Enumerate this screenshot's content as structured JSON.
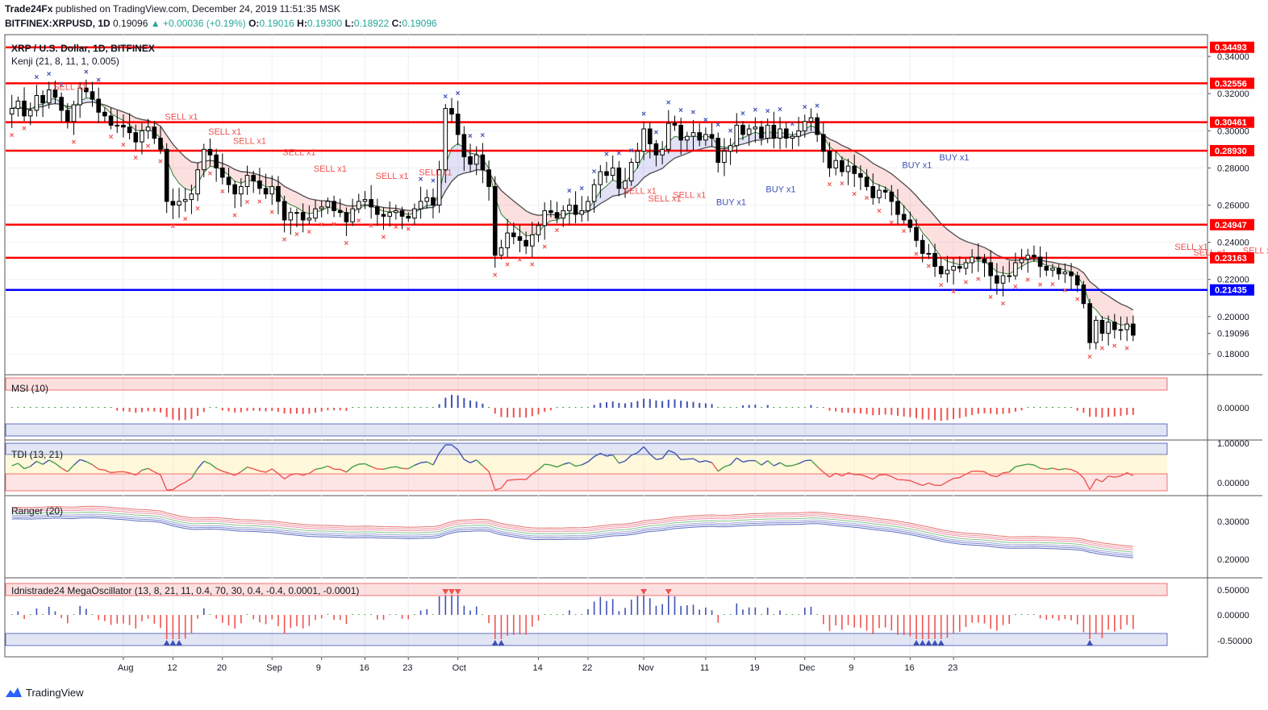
{
  "header": {
    "publisher": "Trade24Fx",
    "published_text": "published on TradingView.com, December 24, 2019 11:51:35 MSK",
    "symbol": "BITFINEX:XRPUSD, 1D",
    "last": "0.19096",
    "change": "+0.00036 (+0.19%)",
    "o_label": "O:",
    "o": "0.19016",
    "h_label": "H:",
    "h": "0.19300",
    "l_label": "L:",
    "l": "0.18922",
    "c_label": "C:",
    "c": "0.19096"
  },
  "footer": {
    "brand": "TradingView"
  },
  "colors": {
    "bull": "#ffffff",
    "bear": "#000000",
    "level": "#ff0000",
    "support": "#0000ff",
    "sell": "#ef5350",
    "buy": "#3f51b5"
  },
  "chart_data": [
    {
      "type": "candlestick",
      "title": "XRP / U.S. Dollar, 1D, BITFINEX",
      "indicator_label": "Kenji (21, 8, 11, 1, 0.005)",
      "ylim": [
        0.17,
        0.35
      ],
      "y_ticks": [
        "0.34000",
        "0.32000",
        "0.30000",
        "0.28000",
        "0.26000",
        "0.24000",
        "0.22000",
        "0.20000",
        "0.18000"
      ],
      "last_price": "0.19096",
      "x_tick_labels": [
        "Aug",
        "12",
        "20",
        "Sep",
        "9",
        "16",
        "23",
        "Oct",
        "14",
        "22",
        "Nov",
        "11",
        "19",
        "Dec",
        "9",
        "16",
        "23"
      ],
      "levels": [
        {
          "value": 0.34493,
          "label": "0.34493",
          "color": "#ff0000"
        },
        {
          "value": 0.32556,
          "label": "0.32556",
          "color": "#ff0000"
        },
        {
          "value": 0.30461,
          "label": "0.30461",
          "color": "#ff0000"
        },
        {
          "value": 0.2893,
          "label": "0.28930",
          "color": "#ff0000"
        },
        {
          "value": 0.24947,
          "label": "0.24947",
          "color": "#ff0000"
        },
        {
          "value": 0.23163,
          "label": "0.23163",
          "color": "#ff0000"
        },
        {
          "value": 0.21435,
          "label": "0.21435",
          "color": "#0000ff"
        }
      ],
      "close": [
        0.312,
        0.316,
        0.308,
        0.311,
        0.319,
        0.315,
        0.322,
        0.318,
        0.311,
        0.305,
        0.314,
        0.323,
        0.321,
        0.317,
        0.31,
        0.308,
        0.303,
        0.303,
        0.302,
        0.299,
        0.294,
        0.3,
        0.302,
        0.296,
        0.29,
        0.262,
        0.26,
        0.262,
        0.263,
        0.266,
        0.279,
        0.29,
        0.287,
        0.28,
        0.275,
        0.271,
        0.266,
        0.27,
        0.276,
        0.273,
        0.269,
        0.266,
        0.27,
        0.262,
        0.252,
        0.256,
        0.256,
        0.252,
        0.253,
        0.258,
        0.259,
        0.262,
        0.257,
        0.256,
        0.251,
        0.258,
        0.262,
        0.263,
        0.259,
        0.255,
        0.254,
        0.256,
        0.257,
        0.254,
        0.253,
        0.258,
        0.262,
        0.264,
        0.26,
        0.279,
        0.312,
        0.309,
        0.298,
        0.286,
        0.282,
        0.287,
        0.279,
        0.27,
        0.233,
        0.237,
        0.245,
        0.243,
        0.241,
        0.238,
        0.244,
        0.249,
        0.257,
        0.256,
        0.253,
        0.257,
        0.26,
        0.255,
        0.257,
        0.262,
        0.271,
        0.278,
        0.276,
        0.28,
        0.269,
        0.273,
        0.283,
        0.289,
        0.301,
        0.293,
        0.287,
        0.29,
        0.304,
        0.303,
        0.295,
        0.297,
        0.299,
        0.295,
        0.298,
        0.296,
        0.283,
        0.289,
        0.292,
        0.303,
        0.298,
        0.301,
        0.302,
        0.296,
        0.303,
        0.296,
        0.301,
        0.296,
        0.297,
        0.3,
        0.305,
        0.307,
        0.298,
        0.289,
        0.28,
        0.284,
        0.278,
        0.281,
        0.277,
        0.275,
        0.27,
        0.264,
        0.268,
        0.267,
        0.262,
        0.255,
        0.252,
        0.248,
        0.241,
        0.234,
        0.234,
        0.227,
        0.223,
        0.225,
        0.227,
        0.226,
        0.229,
        0.232,
        0.231,
        0.229,
        0.222,
        0.218,
        0.222,
        0.222,
        0.229,
        0.231,
        0.233,
        0.232,
        0.227,
        0.225,
        0.226,
        0.223,
        0.224,
        0.222,
        0.217,
        0.207,
        0.186,
        0.198,
        0.191,
        0.197,
        0.193,
        0.193,
        0.196,
        0.19
      ],
      "overlay_labels": [
        {
          "text": "SELL x1",
          "kind": "sell",
          "day": 8,
          "price": 0.322
        },
        {
          "text": "SELL x1",
          "kind": "sell",
          "day": 26,
          "price": 0.306
        },
        {
          "text": "SELL x1",
          "kind": "sell",
          "day": 33,
          "price": 0.298
        },
        {
          "text": "SELL x1",
          "kind": "sell",
          "day": 37,
          "price": 0.293
        },
        {
          "text": "SELL x1",
          "kind": "sell",
          "day": 45,
          "price": 0.287
        },
        {
          "text": "SELL x1",
          "kind": "sell",
          "day": 50,
          "price": 0.278
        },
        {
          "text": "SELL x1",
          "kind": "sell",
          "day": 60,
          "price": 0.274
        },
        {
          "text": "SELL x1",
          "kind": "sell",
          "day": 67,
          "price": 0.276
        },
        {
          "text": "SELL x1",
          "kind": "sell",
          "day": 100,
          "price": 0.266
        },
        {
          "text": "SELL x1",
          "kind": "sell",
          "day": 104,
          "price": 0.262
        },
        {
          "text": "SELL x1",
          "kind": "sell",
          "day": 108,
          "price": 0.264
        },
        {
          "text": "BUY x1",
          "kind": "buy",
          "day": 115,
          "price": 0.26
        },
        {
          "text": "BUY x1",
          "kind": "buy",
          "day": 123,
          "price": 0.267
        },
        {
          "text": "BUY x1",
          "kind": "buy",
          "day": 145,
          "price": 0.28
        },
        {
          "text": "BUY x1",
          "kind": "buy",
          "day": 151,
          "price": 0.284
        },
        {
          "text": "SELL x1",
          "kind": "sell",
          "day": 189,
          "price": 0.236
        },
        {
          "text": "SELL x1",
          "kind": "sell",
          "day": 192,
          "price": 0.233
        },
        {
          "text": "SELL x1",
          "kind": "sell",
          "day": 200,
          "price": 0.234
        },
        {
          "text": "SELL x1",
          "kind": "sell",
          "day": 222,
          "price": 0.206
        }
      ]
    },
    {
      "type": "bar",
      "title": "MSI (10)",
      "y_ticks": [
        "0.00000"
      ],
      "band_upper": 0.5,
      "band_lower": -0.5
    },
    {
      "type": "line",
      "title": "TDI (13, 21)",
      "y_ticks": [
        "1.00000",
        "0.00000"
      ]
    },
    {
      "type": "line",
      "title": "Ranger (20)",
      "y_ticks": [
        "0.30000",
        "0.20000"
      ]
    },
    {
      "type": "bar",
      "title": "Idnistrade24 MegaOscillator (13, 8, 21, 11, 0.4, 70, 30, 0.4, -0.4, 0.0001, -0.0001)",
      "y_ticks": [
        "0.50000",
        "0.00000",
        "-0.50000"
      ]
    }
  ]
}
